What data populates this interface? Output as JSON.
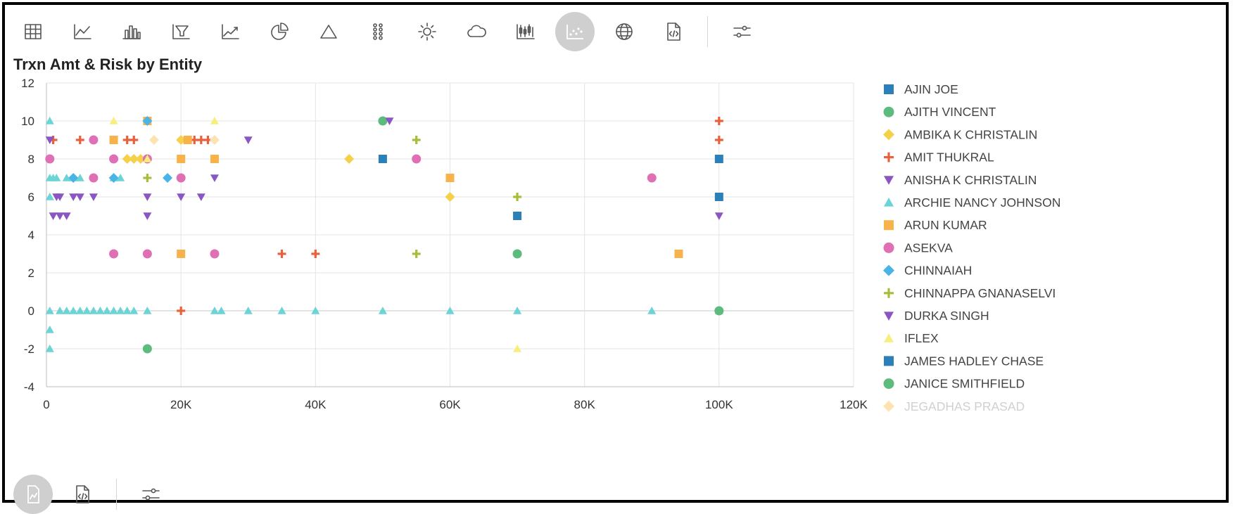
{
  "toolbar": {
    "items": [
      {
        "name": "table-icon",
        "active": false
      },
      {
        "name": "line-chart-icon",
        "active": false
      },
      {
        "name": "bar-chart-icon",
        "active": false
      },
      {
        "name": "funnel-chart-icon",
        "active": false
      },
      {
        "name": "area-chart-icon",
        "active": false
      },
      {
        "name": "pie-chart-icon",
        "active": false
      },
      {
        "name": "pyramid-chart-icon",
        "active": false
      },
      {
        "name": "bubble-grid-icon",
        "active": false
      },
      {
        "name": "sunburst-icon",
        "active": false
      },
      {
        "name": "cloud-icon",
        "active": false
      },
      {
        "name": "candlestick-icon",
        "active": false
      },
      {
        "name": "scatter-chart-icon",
        "active": true
      },
      {
        "name": "globe-icon",
        "active": false
      },
      {
        "name": "code-file-icon",
        "active": false
      }
    ],
    "settings": "sliders-icon"
  },
  "bottom_toolbar": {
    "items": [
      "chart-file-icon",
      "code-file-icon",
      "sliders-icon"
    ]
  },
  "chart_data": {
    "type": "scatter",
    "title": "Trxn Amt & Risk by Entity",
    "xlim": [
      0,
      120000
    ],
    "ylim": [
      -4,
      12
    ],
    "x_ticks": [
      0,
      20000,
      40000,
      60000,
      80000,
      100000,
      120000
    ],
    "x_tick_labels": [
      "0",
      "20K",
      "40K",
      "60K",
      "80K",
      "100K",
      "120K"
    ],
    "y_ticks": [
      -4,
      -2,
      0,
      2,
      4,
      6,
      8,
      10,
      12
    ],
    "y_tick_labels": [
      "-4",
      "-2",
      "0",
      "2",
      "4",
      "6",
      "8",
      "10",
      "12"
    ],
    "grid": true,
    "legend_position": "right",
    "series": [
      {
        "name": "AJIN JOE",
        "color": "#2d7fb8",
        "marker": "square",
        "points": [
          [
            50000,
            8
          ],
          [
            70000,
            5
          ],
          [
            100000,
            8
          ],
          [
            100000,
            6
          ]
        ]
      },
      {
        "name": "AJITH VINCENT",
        "color": "#5dbb7e",
        "marker": "circle",
        "points": [
          [
            50000,
            10
          ],
          [
            70000,
            3
          ],
          [
            15000,
            -2
          ]
        ]
      },
      {
        "name": "AMBIKA K CHRISTALIN",
        "color": "#f5d04b",
        "marker": "diamond",
        "points": [
          [
            12000,
            8
          ],
          [
            13000,
            8
          ],
          [
            14000,
            8
          ],
          [
            20000,
            9
          ],
          [
            45000,
            8
          ],
          [
            60000,
            6
          ]
        ]
      },
      {
        "name": "AMIT THUKRAL",
        "color": "#e8613c",
        "marker": "plus",
        "points": [
          [
            1000,
            9
          ],
          [
            5000,
            9
          ],
          [
            12000,
            9
          ],
          [
            13000,
            9
          ],
          [
            22000,
            9
          ],
          [
            23000,
            9
          ],
          [
            24000,
            9
          ],
          [
            35000,
            3
          ],
          [
            40000,
            3
          ],
          [
            20000,
            0
          ],
          [
            100000,
            10
          ],
          [
            100000,
            9
          ]
        ]
      },
      {
        "name": "ANISHA K CHRISTALIN",
        "color": "#8a56c2",
        "marker": "triangle-down",
        "points": [
          [
            500,
            9
          ],
          [
            1000,
            5
          ],
          [
            2000,
            5
          ],
          [
            3000,
            5
          ],
          [
            1500,
            6
          ],
          [
            2000,
            6
          ],
          [
            4000,
            6
          ],
          [
            5000,
            6
          ],
          [
            7000,
            6
          ],
          [
            15000,
            6
          ],
          [
            15000,
            5
          ],
          [
            20000,
            6
          ],
          [
            23000,
            6
          ],
          [
            25000,
            7
          ],
          [
            30000,
            9
          ],
          [
            51000,
            10
          ],
          [
            100000,
            5
          ]
        ]
      },
      {
        "name": "ARCHIE NANCY JOHNSON",
        "color": "#6bd4d6",
        "marker": "triangle",
        "points": [
          [
            500,
            10
          ],
          [
            500,
            7
          ],
          [
            1000,
            7
          ],
          [
            1500,
            7
          ],
          [
            3000,
            7
          ],
          [
            4000,
            7
          ],
          [
            5000,
            7
          ],
          [
            10000,
            7
          ],
          [
            11000,
            7
          ],
          [
            500,
            6
          ],
          [
            500,
            0
          ],
          [
            2000,
            0
          ],
          [
            3000,
            0
          ],
          [
            4000,
            0
          ],
          [
            5000,
            0
          ],
          [
            6000,
            0
          ],
          [
            7000,
            0
          ],
          [
            8000,
            0
          ],
          [
            9000,
            0
          ],
          [
            10000,
            0
          ],
          [
            11000,
            0
          ],
          [
            12000,
            0
          ],
          [
            13000,
            0
          ],
          [
            15000,
            0
          ],
          [
            25000,
            0
          ],
          [
            26000,
            0
          ],
          [
            30000,
            0
          ],
          [
            35000,
            0
          ],
          [
            40000,
            0
          ],
          [
            50000,
            0
          ],
          [
            60000,
            0
          ],
          [
            70000,
            0
          ],
          [
            90000,
            0
          ],
          [
            100000,
            0
          ],
          [
            500,
            -1
          ],
          [
            500,
            -2
          ]
        ]
      },
      {
        "name": "ARUN KUMAR",
        "color": "#f8b24a",
        "marker": "square",
        "points": [
          [
            10000,
            9
          ],
          [
            20000,
            8
          ],
          [
            21000,
            9
          ],
          [
            25000,
            8
          ],
          [
            15000,
            10
          ],
          [
            20000,
            3
          ],
          [
            60000,
            7
          ],
          [
            94000,
            3
          ]
        ]
      },
      {
        "name": "ASEKVA",
        "color": "#e070b5",
        "marker": "circle",
        "points": [
          [
            500,
            8
          ],
          [
            7000,
            9
          ],
          [
            7000,
            7
          ],
          [
            10000,
            8
          ],
          [
            15000,
            8
          ],
          [
            20000,
            7
          ],
          [
            10000,
            3
          ],
          [
            15000,
            3
          ],
          [
            25000,
            3
          ],
          [
            55000,
            8
          ],
          [
            90000,
            7
          ]
        ]
      },
      {
        "name": "CHINNAIAH",
        "color": "#4bb4e6",
        "marker": "diamond",
        "points": [
          [
            4000,
            7
          ],
          [
            10000,
            7
          ],
          [
            15000,
            10
          ],
          [
            18000,
            7
          ]
        ]
      },
      {
        "name": "CHINNAPPA GNANASELVI",
        "color": "#a6be3a",
        "marker": "plus",
        "points": [
          [
            15000,
            7
          ],
          [
            55000,
            9
          ],
          [
            55000,
            3
          ],
          [
            70000,
            6
          ]
        ]
      },
      {
        "name": "DURKA SINGH",
        "color": "#8a56c2",
        "marker": "triangle-down",
        "points": []
      },
      {
        "name": "IFLEX",
        "color": "#f8ee7a",
        "marker": "triangle",
        "points": [
          [
            10000,
            10
          ],
          [
            15000,
            8
          ],
          [
            25000,
            10
          ],
          [
            70000,
            -2
          ]
        ]
      },
      {
        "name": "JAMES HADLEY CHASE",
        "color": "#2d7fb8",
        "marker": "square",
        "points": []
      },
      {
        "name": "JANICE SMITHFIELD",
        "color": "#5dbb7e",
        "marker": "circle",
        "points": [
          [
            100000,
            0
          ]
        ]
      },
      {
        "name": "JEGADHAS PRASAD",
        "color": "#fde3b0",
        "marker": "diamond",
        "points": [
          [
            16000,
            9
          ],
          [
            25000,
            9
          ]
        ]
      }
    ]
  }
}
